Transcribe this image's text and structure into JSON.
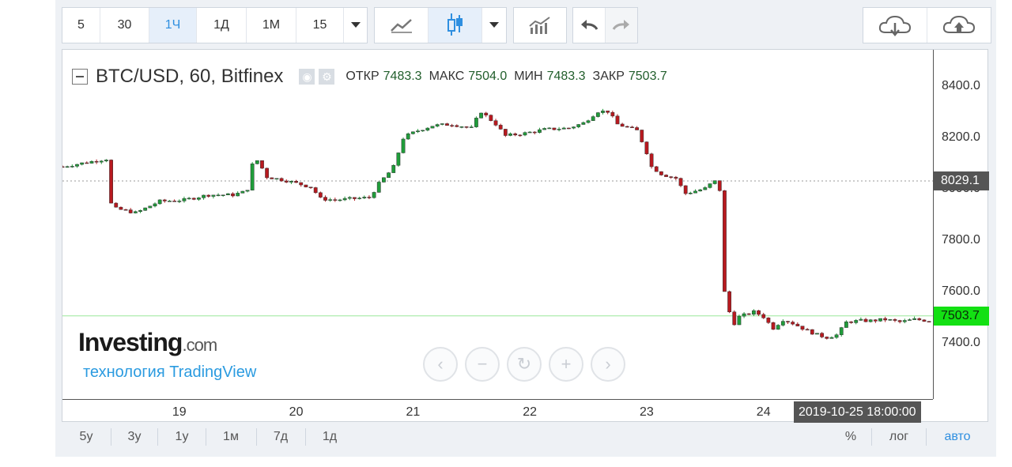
{
  "toolbar": {
    "intervals": [
      "5",
      "30",
      "1Ч",
      "1Д",
      "1М",
      "15"
    ],
    "active_interval": "1Ч"
  },
  "header": {
    "symbol": "BTC/USD, 60, Bitfinex",
    "open_label": "ОТКР",
    "open_value": "7483.3",
    "high_label": "МАКС",
    "high_value": "7504.0",
    "low_label": "МИН",
    "low_value": "7483.3",
    "close_label": "ЗАКР",
    "close_value": "7503.7"
  },
  "watermark": {
    "logo": "Investing",
    "logo_suffix": ".com",
    "subtitle": "технология TradingView"
  },
  "navigation": [
    "‹",
    "−",
    "↻",
    "+",
    "›"
  ],
  "bottom": {
    "ranges": [
      "5у",
      "3у",
      "1у",
      "1м",
      "7д",
      "1д"
    ],
    "scale_percent": "%",
    "scale_log": "лог",
    "scale_auto": "авто"
  },
  "colors": {
    "up": "#1f9d3a",
    "down": "#b8191f",
    "current_price": "#13e013",
    "crosshair_badge": "#555555"
  },
  "chart_data": {
    "type": "candlestick",
    "title": "BTC/USD, 60, Bitfinex",
    "ylim": [
      7180,
      8540
    ],
    "yticks": [
      7400,
      7600,
      7800,
      8000,
      8200,
      8400
    ],
    "ytick_labels": [
      "7400.0",
      "7600.0",
      "7800.0",
      "8000.0",
      "8200.0",
      "8400.0"
    ],
    "xticks": [
      {
        "day": 19,
        "label": "19"
      },
      {
        "day": 20,
        "label": "20"
      },
      {
        "day": 21,
        "label": "21"
      },
      {
        "day": 22,
        "label": "22"
      },
      {
        "day": 23,
        "label": "23"
      },
      {
        "day": 24,
        "label": "24"
      }
    ],
    "x_range_days": [
      18.0,
      25.45
    ],
    "crosshair_price": 8029.1,
    "crosshair_label": "8029.1",
    "last_price": 7503.7,
    "last_price_label": "7503.7",
    "crosshair_time_label": "2019-10-25 18:00:00",
    "crosshair_time_day": 25.3,
    "series": [
      {
        "points": [
          [
            18.0,
            8085
          ],
          [
            18.38,
            8115
          ],
          [
            18.42,
            7925
          ],
          [
            18.63,
            7905
          ],
          [
            18.83,
            7950
          ],
          [
            19.04,
            7955
          ],
          [
            19.25,
            7975
          ],
          [
            19.46,
            7975
          ],
          [
            19.58,
            7990
          ],
          [
            19.62,
            8090
          ],
          [
            19.67,
            8110
          ],
          [
            19.75,
            8045
          ],
          [
            19.92,
            8030
          ],
          [
            20.13,
            8005
          ],
          [
            20.21,
            7960
          ],
          [
            20.33,
            7955
          ],
          [
            20.63,
            7965
          ],
          [
            20.71,
            8020
          ],
          [
            20.83,
            8080
          ],
          [
            20.92,
            8200
          ],
          [
            21.04,
            8225
          ],
          [
            21.17,
            8245
          ],
          [
            21.33,
            8250
          ],
          [
            21.5,
            8235
          ],
          [
            21.58,
            8300
          ],
          [
            21.71,
            8250
          ],
          [
            21.79,
            8205
          ],
          [
            21.96,
            8215
          ],
          [
            22.13,
            8230
          ],
          [
            22.33,
            8235
          ],
          [
            22.46,
            8255
          ],
          [
            22.58,
            8300
          ],
          [
            22.67,
            8300
          ],
          [
            22.75,
            8250
          ],
          [
            22.92,
            8225
          ],
          [
            23.0,
            8140
          ],
          [
            23.04,
            8085
          ],
          [
            23.13,
            8055
          ],
          [
            23.25,
            8040
          ],
          [
            23.33,
            7980
          ],
          [
            23.5,
            8000
          ],
          [
            23.58,
            8030
          ],
          [
            23.63,
            7990
          ],
          [
            23.67,
            7560
          ],
          [
            23.75,
            7475
          ],
          [
            23.79,
            7500
          ],
          [
            23.92,
            7520
          ],
          [
            24.0,
            7500
          ],
          [
            24.08,
            7455
          ],
          [
            24.17,
            7490
          ],
          [
            24.25,
            7475
          ],
          [
            24.38,
            7445
          ],
          [
            24.46,
            7430
          ],
          [
            24.54,
            7420
          ],
          [
            24.63,
            7430
          ],
          [
            24.71,
            7480
          ],
          [
            24.83,
            7485
          ],
          [
            24.92,
            7485
          ],
          [
            25.04,
            7490
          ],
          [
            25.17,
            7480
          ],
          [
            25.29,
            7490
          ],
          [
            25.42,
            7485
          ],
          [
            25.45,
            7504
          ]
        ]
      }
    ]
  }
}
